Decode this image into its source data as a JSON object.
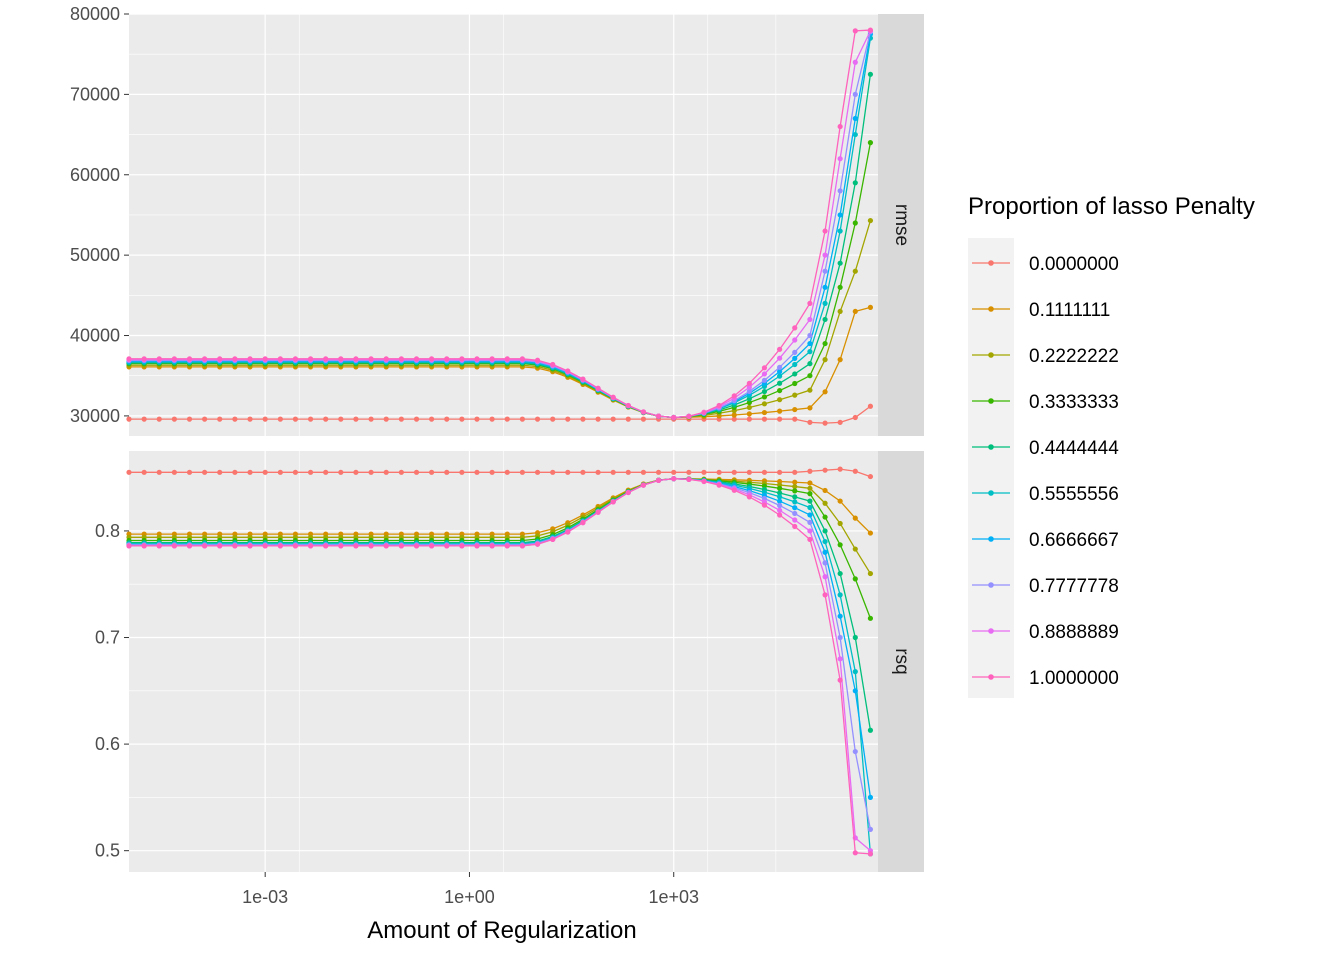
{
  "chart_data": {
    "type": "line",
    "xlabel": "Amount of Regularization",
    "x_scale": "log10",
    "x_ticks": [
      0.001,
      1,
      1000
    ],
    "x_tick_labels": [
      "1e-03",
      "1e+00",
      "1e+03"
    ],
    "x_range": [
      1e-05,
      1000000
    ],
    "x": [
      1e-05,
      1.67e-05,
      2.78e-05,
      4.64e-05,
      7.74e-05,
      0.000129,
      0.000215,
      0.000359,
      0.000599,
      0.001,
      0.00167,
      0.00278,
      0.00464,
      0.00774,
      0.0129,
      0.0215,
      0.0359,
      0.0599,
      0.1,
      0.167,
      0.278,
      0.464,
      0.774,
      1.29,
      2.15,
      3.59,
      5.99,
      10,
      16.7,
      27.8,
      46.4,
      77.4,
      129,
      215,
      359,
      599,
      1000,
      1670,
      2780,
      4640,
      7740,
      12900,
      21500,
      35900,
      59900,
      100000,
      167000,
      278000,
      464000,
      774000
    ],
    "grid": true,
    "legend_title": "Proportion of lasso Penalty",
    "legend_position": "right",
    "series_names": [
      "0.0000000",
      "0.1111111",
      "0.2222222",
      "0.3333333",
      "0.4444444",
      "0.5555556",
      "0.6666667",
      "0.7777778",
      "0.8888889",
      "1.0000000"
    ],
    "colors": [
      "#F8766D",
      "#D89000",
      "#A3A500",
      "#39B600",
      "#00BF7D",
      "#00BFC4",
      "#00B0F6",
      "#9590FF",
      "#E76BF3",
      "#FF62BC"
    ],
    "panels": [
      {
        "strip": "rmse",
        "y_ticks": [
          30000,
          40000,
          50000,
          60000,
          70000,
          80000
        ],
        "y_tick_labels": [
          "30000",
          "40000",
          "50000",
          "60000",
          "70000",
          "80000"
        ],
        "y_range": [
          27500,
          80000
        ],
        "series": [
          {
            "name": "0.0000000",
            "plateau": 29600,
            "tail_x": [
              100000,
              167000,
              278000,
              464000,
              774000
            ],
            "tail_y": [
              29200,
              29100,
              29200,
              29800,
              31200
            ]
          },
          {
            "name": "0.1111111",
            "plateau": 36100,
            "tail_x": [
              100000,
              167000,
              278000,
              464000,
              774000
            ],
            "tail_y": [
              31000,
              33000,
              37000,
              43000,
              43500
            ]
          },
          {
            "name": "0.2222222",
            "plateau": 36300,
            "tail_x": [
              100000,
              167000,
              278000,
              464000,
              774000
            ],
            "tail_y": [
              33200,
              37000,
              43000,
              48000,
              54300
            ]
          },
          {
            "name": "0.3333333",
            "plateau": 36500,
            "tail_x": [
              100000,
              167000,
              278000,
              464000,
              774000
            ],
            "tail_y": [
              35000,
              39000,
              46000,
              54000,
              64000
            ]
          },
          {
            "name": "0.4444444",
            "plateau": 36600,
            "tail_x": [
              100000,
              167000,
              278000,
              464000,
              774000
            ],
            "tail_y": [
              36500,
              42000,
              49000,
              59000,
              72500
            ]
          },
          {
            "name": "0.5555556",
            "plateau": 36700,
            "tail_x": [
              100000,
              167000,
              278000,
              464000,
              774000
            ],
            "tail_y": [
              38000,
              44000,
              53000,
              65000,
              77000
            ]
          },
          {
            "name": "0.6666667",
            "plateau": 36800,
            "tail_x": [
              100000,
              167000,
              278000,
              464000,
              774000
            ],
            "tail_y": [
              39000,
              46000,
              55000,
              67000,
              77500
            ]
          },
          {
            "name": "0.7777778",
            "plateau": 36900,
            "tail_x": [
              100000,
              167000,
              278000,
              464000,
              774000
            ],
            "tail_y": [
              40000,
              48000,
              58000,
              70000,
              77800
            ]
          },
          {
            "name": "0.8888889",
            "plateau": 37000,
            "tail_x": [
              100000,
              167000,
              278000,
              464000,
              774000
            ],
            "tail_y": [
              42000,
              50000,
              62000,
              74000,
              77900
            ]
          },
          {
            "name": "1.0000000",
            "plateau": 37100,
            "tail_x": [
              100000,
              167000,
              278000,
              464000,
              774000
            ],
            "tail_y": [
              44000,
              53000,
              66000,
              77900,
              78000
            ]
          }
        ]
      },
      {
        "strip": "rsq",
        "y_ticks": [
          0.5,
          0.6,
          0.7,
          0.8
        ],
        "y_tick_labels": [
          "0.5",
          "0.6",
          "0.7",
          "0.8"
        ],
        "y_range": [
          0.48,
          0.875
        ],
        "series": [
          {
            "name": "0.0000000",
            "plateau": 0.855,
            "tail_x": [
              100000,
              167000,
              278000,
              464000,
              774000
            ],
            "tail_y": [
              0.856,
              0.857,
              0.858,
              0.856,
              0.851
            ]
          },
          {
            "name": "0.1111111",
            "plateau": 0.797,
            "tail_x": [
              100000,
              167000,
              278000,
              464000,
              774000
            ],
            "tail_y": [
              0.845,
              0.838,
              0.828,
              0.812,
              0.798
            ]
          },
          {
            "name": "0.2222222",
            "plateau": 0.794,
            "tail_x": [
              100000,
              167000,
              278000,
              464000,
              774000
            ],
            "tail_y": [
              0.84,
              0.826,
              0.807,
              0.783,
              0.76
            ]
          },
          {
            "name": "0.3333333",
            "plateau": 0.791,
            "tail_x": [
              100000,
              167000,
              278000,
              464000,
              774000
            ],
            "tail_y": [
              0.835,
              0.813,
              0.787,
              0.755,
              0.718
            ]
          },
          {
            "name": "0.4444444",
            "plateau": 0.789,
            "tail_x": [
              100000,
              167000,
              278000,
              464000,
              774000
            ],
            "tail_y": [
              0.828,
              0.8,
              0.76,
              0.7,
              0.613
            ]
          },
          {
            "name": "0.5555556",
            "plateau": 0.788,
            "tail_x": [
              100000,
              167000,
              278000,
              464000,
              774000
            ],
            "tail_y": [
              0.822,
              0.79,
              0.74,
              0.668,
              0.497
            ]
          },
          {
            "name": "0.6666667",
            "plateau": 0.787,
            "tail_x": [
              100000,
              167000,
              278000,
              464000,
              774000
            ],
            "tail_y": [
              0.815,
              0.78,
              0.72,
              0.65,
              0.55
            ]
          },
          {
            "name": "0.7777778",
            "plateau": 0.787,
            "tail_x": [
              100000,
              167000,
              278000,
              464000,
              774000
            ],
            "tail_y": [
              0.808,
              0.77,
              0.7,
              0.593,
              0.52
            ]
          },
          {
            "name": "0.8888889",
            "plateau": 0.786,
            "tail_x": [
              100000,
              167000,
              278000,
              464000,
              774000
            ],
            "tail_y": [
              0.8,
              0.757,
              0.68,
              0.512,
              0.5
            ]
          },
          {
            "name": "1.0000000",
            "plateau": 0.786,
            "tail_x": [
              100000,
              167000,
              278000,
              464000,
              774000
            ],
            "tail_y": [
              0.792,
              0.74,
              0.66,
              0.498,
              0.497
            ]
          }
        ]
      }
    ]
  }
}
